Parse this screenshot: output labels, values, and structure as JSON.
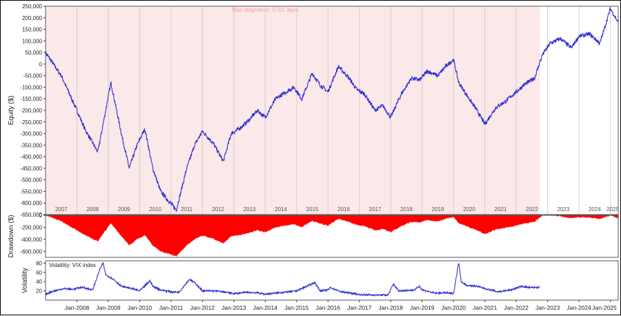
{
  "chart_data": [
    {
      "type": "line",
      "panel": "equity",
      "ylabel": "Equity ($)",
      "ylim": [
        -650000,
        250000
      ],
      "yticks": [
        "250,000",
        "200,000",
        "150,000",
        "100,000",
        "50,000",
        "0",
        "-50,000",
        "-100,000",
        "-150,000",
        "-200,000",
        "-250,000",
        "-300,000",
        "-350,000",
        "-400,000",
        "-450,000",
        "-500,000",
        "-550,000",
        "-600,000",
        "-650,000"
      ],
      "year_labels": [
        "2007",
        "2008",
        "2009",
        "2010",
        "2011",
        "2012",
        "2013",
        "2014",
        "2015",
        "2016",
        "2017",
        "2018",
        "2019",
        "2020",
        "2021",
        "2022",
        "2023",
        "2024",
        "2025"
      ],
      "annotation": "Max stagnation: 5761 days",
      "stagnation_range": [
        "2007-01",
        "2022-10"
      ],
      "color": "#2f2fd0",
      "x": [
        "2007-01",
        "2007-07",
        "2008-01",
        "2008-04",
        "2008-09",
        "2008-12",
        "2009-02",
        "2009-06",
        "2009-09",
        "2009-12",
        "2010-03",
        "2010-06",
        "2010-09",
        "2010-12",
        "2011-03",
        "2011-07",
        "2011-10",
        "2012-01",
        "2012-05",
        "2012-09",
        "2012-12",
        "2013-03",
        "2013-07",
        "2013-10",
        "2014-01",
        "2014-05",
        "2014-09",
        "2014-12",
        "2015-03",
        "2015-07",
        "2015-10",
        "2016-01",
        "2016-05",
        "2016-09",
        "2016-12",
        "2017-03",
        "2017-07",
        "2017-10",
        "2018-01",
        "2018-05",
        "2018-09",
        "2018-12",
        "2019-03",
        "2019-07",
        "2019-10",
        "2020-01",
        "2020-03",
        "2020-07",
        "2020-10",
        "2021-01",
        "2021-05",
        "2021-09",
        "2021-12",
        "2022-04",
        "2022-08",
        "2022-11",
        "2023-02",
        "2023-06",
        "2023-10",
        "2024-01",
        "2024-05",
        "2024-09",
        "2025-01",
        "2025-04"
      ],
      "y": [
        50000,
        -50000,
        -200000,
        -280000,
        -380000,
        -200000,
        -80000,
        -300000,
        -450000,
        -350000,
        -280000,
        -450000,
        -550000,
        -590000,
        -630000,
        -450000,
        -350000,
        -290000,
        -340000,
        -420000,
        -300000,
        -280000,
        -240000,
        -200000,
        -230000,
        -150000,
        -120000,
        -100000,
        -150000,
        -40000,
        -90000,
        -120000,
        -10000,
        -60000,
        -110000,
        -130000,
        -200000,
        -180000,
        -230000,
        -130000,
        -60000,
        -70000,
        -30000,
        -50000,
        -10000,
        20000,
        -80000,
        -150000,
        -200000,
        -260000,
        -190000,
        -160000,
        -130000,
        -90000,
        -60000,
        40000,
        90000,
        110000,
        70000,
        120000,
        130000,
        90000,
        240000,
        180000
      ]
    },
    {
      "type": "area",
      "panel": "drawdown",
      "ylabel": "Drawdown ($)",
      "ylim": [
        -700000,
        0
      ],
      "yticks": [
        "0",
        "-200,000",
        "-400,000",
        "-600,000"
      ],
      "color": "#ff0000",
      "x": [
        "2007-01",
        "2007-07",
        "2008-01",
        "2008-04",
        "2008-09",
        "2008-12",
        "2009-02",
        "2009-06",
        "2009-09",
        "2009-12",
        "2010-03",
        "2010-06",
        "2010-09",
        "2010-12",
        "2011-03",
        "2011-07",
        "2011-10",
        "2012-01",
        "2012-05",
        "2012-09",
        "2012-12",
        "2013-03",
        "2013-07",
        "2013-10",
        "2014-01",
        "2014-05",
        "2014-09",
        "2014-12",
        "2015-03",
        "2015-07",
        "2015-10",
        "2016-01",
        "2016-05",
        "2016-09",
        "2016-12",
        "2017-03",
        "2017-07",
        "2017-10",
        "2018-01",
        "2018-05",
        "2018-09",
        "2018-12",
        "2019-03",
        "2019-07",
        "2019-10",
        "2020-01",
        "2020-03",
        "2020-07",
        "2020-10",
        "2021-01",
        "2021-05",
        "2021-09",
        "2021-12",
        "2022-04",
        "2022-08",
        "2022-11",
        "2023-02",
        "2023-06",
        "2023-10",
        "2024-01",
        "2024-05",
        "2024-09",
        "2025-01",
        "2025-04"
      ],
      "y": [
        0,
        -100000,
        -250000,
        -330000,
        -430000,
        -250000,
        -130000,
        -350000,
        -500000,
        -400000,
        -330000,
        -500000,
        -600000,
        -640000,
        -680000,
        -500000,
        -400000,
        -340000,
        -390000,
        -470000,
        -350000,
        -330000,
        -290000,
        -250000,
        -280000,
        -200000,
        -170000,
        -150000,
        -200000,
        -90000,
        -140000,
        -170000,
        -60000,
        -110000,
        -160000,
        -180000,
        -250000,
        -230000,
        -280000,
        -180000,
        -110000,
        -120000,
        -80000,
        -100000,
        -60000,
        -30000,
        -130000,
        -200000,
        -250000,
        -310000,
        -240000,
        -210000,
        -180000,
        -140000,
        -110000,
        0,
        0,
        -20000,
        -50000,
        -30000,
        -40000,
        -60000,
        0,
        -60000
      ]
    },
    {
      "type": "line",
      "panel": "volatility",
      "ylabel": "Volatility",
      "ylim": [
        0,
        85
      ],
      "yticks": [
        "80",
        "60",
        "40",
        "20"
      ],
      "legend": "Volatility: VIX index",
      "color": "#2f2fd0",
      "x_tick_labels": [
        "Jan-2008",
        "Jan-2009",
        "Jan-2010",
        "Jan-2011",
        "Jan-2012",
        "Jan-2013",
        "Jan-2014",
        "Jan-2015",
        "Jan-2016",
        "Jan-2017",
        "Jan-2018",
        "Jan-2019",
        "Jan-2020",
        "Jan-2021",
        "Jan-2022",
        "Jan-2023",
        "Jan-2024",
        "Jan-2025"
      ],
      "x": [
        "2007-01",
        "2007-03",
        "2007-08",
        "2007-11",
        "2008-03",
        "2008-07",
        "2008-10",
        "2008-11",
        "2008-12",
        "2009-03",
        "2009-06",
        "2009-10",
        "2010-01",
        "2010-05",
        "2010-06",
        "2010-09",
        "2011-01",
        "2011-04",
        "2011-08",
        "2011-10",
        "2012-01",
        "2012-06",
        "2012-10",
        "2013-01",
        "2013-06",
        "2013-10",
        "2014-01",
        "2014-10",
        "2015-01",
        "2015-08",
        "2015-10",
        "2016-01",
        "2016-02",
        "2016-06",
        "2016-11",
        "2017-01",
        "2017-06",
        "2017-12",
        "2018-02",
        "2018-04",
        "2018-10",
        "2018-12",
        "2019-01",
        "2019-06",
        "2019-10",
        "2020-01",
        "2020-03",
        "2020-04",
        "2020-06",
        "2020-10",
        "2021-01",
        "2021-06",
        "2021-11",
        "2022-03",
        "2022-06",
        "2022-10"
      ],
      "y": [
        12,
        18,
        25,
        23,
        28,
        22,
        70,
        80,
        55,
        45,
        30,
        25,
        20,
        42,
        30,
        22,
        18,
        17,
        45,
        38,
        20,
        20,
        17,
        14,
        17,
        16,
        13,
        18,
        20,
        38,
        20,
        22,
        27,
        18,
        14,
        12,
        11,
        11,
        35,
        20,
        22,
        30,
        22,
        15,
        16,
        14,
        82,
        40,
        32,
        30,
        25,
        18,
        22,
        30,
        27,
        28
      ]
    }
  ]
}
